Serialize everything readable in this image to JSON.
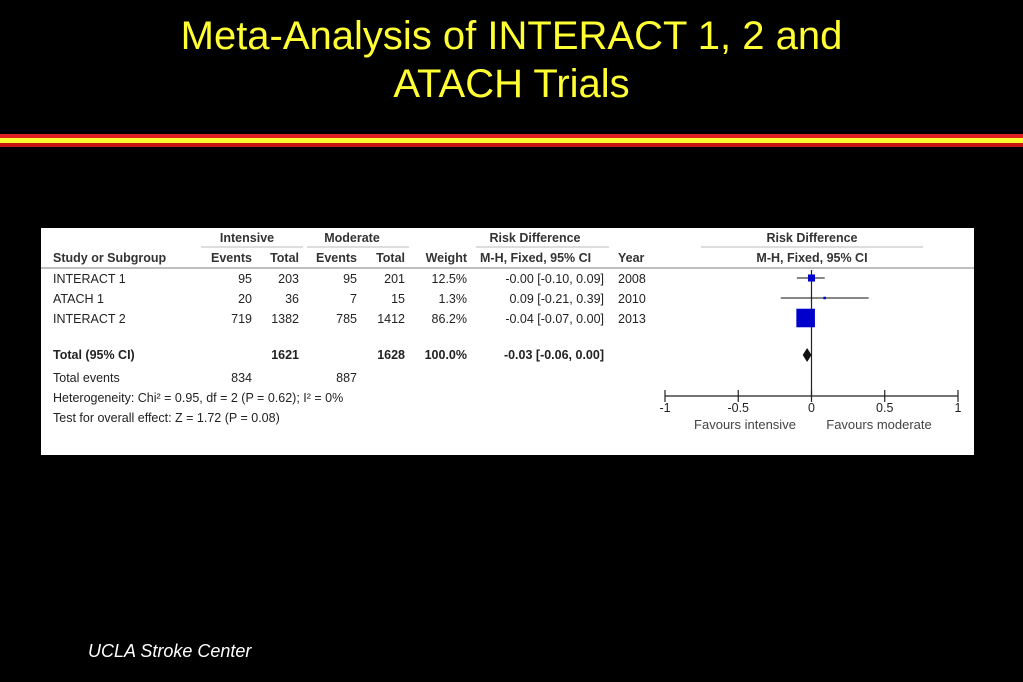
{
  "slide": {
    "title_line1": "Meta-Analysis of INTERACT 1, 2 and",
    "title_line2": "ATACH Trials",
    "footer": "UCLA Stroke Center",
    "colors": {
      "background": "#000000",
      "title": "#ffff33",
      "bar_red": "#e32222",
      "bar_yellow": "#ffff33",
      "marker": "#0000cc"
    }
  },
  "chart_data": {
    "type": "forest",
    "headers": {
      "group_intensive": "Intensive",
      "group_moderate": "Moderate",
      "group_risk_difference": "Risk Difference",
      "study": "Study or Subgroup",
      "events": "Events",
      "total": "Total",
      "weight": "Weight",
      "method": "M-H, Fixed, 95% CI",
      "year": "Year",
      "plot_title": "Risk Difference",
      "plot_method": "M-H, Fixed, 95% CI"
    },
    "studies": [
      {
        "name": "INTERACT 1",
        "int_events": "95",
        "int_total": "203",
        "mod_events": "95",
        "mod_total": "201",
        "weight": "12.5%",
        "ci_text": "-0.00 [-0.10, 0.09]",
        "year": "2008",
        "rd": -0.0,
        "lo": -0.1,
        "hi": 0.09,
        "weight_pct": 12.5
      },
      {
        "name": "ATACH 1",
        "int_events": "20",
        "int_total": "36",
        "mod_events": "7",
        "mod_total": "15",
        "weight": "1.3%",
        "ci_text": "0.09 [-0.21, 0.39]",
        "year": "2010",
        "rd": 0.09,
        "lo": -0.21,
        "hi": 0.39,
        "weight_pct": 1.3
      },
      {
        "name": "INTERACT 2",
        "int_events": "719",
        "int_total": "1382",
        "mod_events": "785",
        "mod_total": "1412",
        "weight": "86.2%",
        "ci_text": "-0.04 [-0.07, 0.00]",
        "year": "2013",
        "rd": -0.04,
        "lo": -0.07,
        "hi": 0.0,
        "weight_pct": 86.2
      }
    ],
    "total": {
      "name": "Total (95% CI)",
      "int_total": "1621",
      "mod_total": "1628",
      "weight": "100.0%",
      "ci_text": "-0.03 [-0.06, 0.00]",
      "rd": -0.03,
      "lo": -0.06,
      "hi": 0.0
    },
    "total_events": {
      "label": "Total events",
      "intensive": "834",
      "moderate": "887"
    },
    "heterogeneity": "Heterogeneity: Chi² = 0.95, df = 2 (P = 0.62); I² = 0%",
    "overall_effect": "Test for overall effect: Z = 1.72 (P = 0.08)",
    "axis": {
      "min": -1,
      "max": 1,
      "ticks": [
        -1,
        -0.5,
        0,
        0.5,
        1
      ],
      "tick_labels": [
        "-1",
        "-0.5",
        "0",
        "0.5",
        "1"
      ]
    },
    "favours_left": "Favours intensive",
    "favours_right": "Favours moderate"
  }
}
